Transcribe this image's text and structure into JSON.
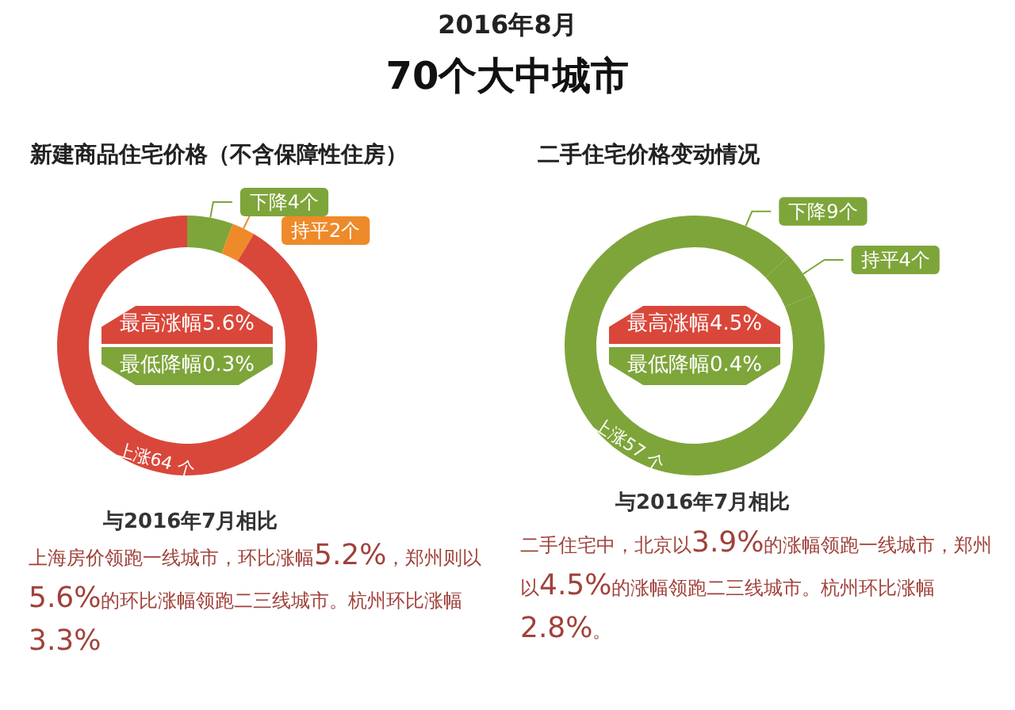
{
  "chart_data": [
    {
      "type": "donut",
      "title": "新建商品住宅价格（不含保障性住房）",
      "categories": [
        "下降",
        "持平",
        "上涨"
      ],
      "values": [
        4,
        2,
        64
      ],
      "colors": [
        "#7ea53a",
        "#ee8a2a",
        "#d9473a"
      ],
      "value_labels": [
        "4个",
        "2个",
        "64 个"
      ],
      "annotations": [
        "2016年8月",
        "70个大中城市",
        "最高涨幅5.6%",
        "最低降幅0.3%",
        "与2016年7月相比",
        "上海房价领跑一线城市，环比涨幅5.2%，郑州则以5.6%的环比涨幅领跑二三线城市。杭州环比涨幅3.3%"
      ]
    },
    {
      "type": "donut",
      "title": "二手住宅价格变动情况",
      "categories": [
        "下降",
        "持平",
        "上涨"
      ],
      "values": [
        9,
        4,
        57
      ],
      "colors": [
        "#7ea53a",
        "#7ea53a",
        "#7ea53a"
      ],
      "value_labels": [
        "9个",
        "4个",
        "57 个"
      ],
      "annotations": [
        "最高涨幅4.5%",
        "最低降幅0.4%",
        "与2016年7月相比",
        "二手住宅中，北京以3.9%的涨幅领跑一线城市，郑州以4.5%的涨幅领跑二三线城市。杭州环比涨幅2.8%。"
      ]
    }
  ]
}
